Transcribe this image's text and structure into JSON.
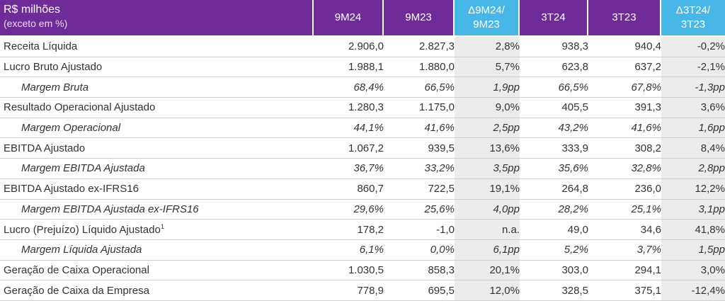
{
  "table": {
    "header": {
      "title": "R$ milhões",
      "subtitle": "(exceto em %)",
      "columns": [
        "9M24",
        "9M23",
        "Δ9M24/\n9M23",
        "3T24",
        "3T23",
        "Δ3T24/\n3T23"
      ]
    },
    "rows": [
      {
        "label": "Receita Líquida",
        "sup": "",
        "italic": false,
        "values": [
          "2.906,0",
          "2.827,3",
          "2,8%",
          "938,3",
          "940,4",
          "-0,2%"
        ]
      },
      {
        "label": "Lucro Bruto Ajustado",
        "sup": "",
        "italic": false,
        "values": [
          "1.988,1",
          "1.880,0",
          "5,7%",
          "623,8",
          "637,2",
          "-2,1%"
        ]
      },
      {
        "label": "Margem Bruta",
        "sup": "",
        "italic": true,
        "values": [
          "68,4%",
          "66,5%",
          "1,9pp",
          "66,5%",
          "67,8%",
          "-1,3pp"
        ]
      },
      {
        "label": "Resultado Operacional Ajustado",
        "sup": "",
        "italic": false,
        "values": [
          "1.280,3",
          "1.175,0",
          "9,0%",
          "405,5",
          "391,3",
          "3,6%"
        ]
      },
      {
        "label": "Margem Operacional",
        "sup": "",
        "italic": true,
        "values": [
          "44,1%",
          "41,6%",
          "2,5pp",
          "43,2%",
          "41,6%",
          "1,6pp"
        ]
      },
      {
        "label": "EBITDA Ajustado",
        "sup": "",
        "italic": false,
        "values": [
          "1.067,2",
          "939,5",
          "13,6%",
          "333,9",
          "308,2",
          "8,4%"
        ]
      },
      {
        "label": "Margem EBITDA Ajustada",
        "sup": "",
        "italic": true,
        "values": [
          "36,7%",
          "33,2%",
          "3,5pp",
          "35,6%",
          "32,8%",
          "2,8pp"
        ]
      },
      {
        "label": "EBITDA Ajustado ex-IFRS16",
        "sup": "",
        "italic": false,
        "values": [
          "860,7",
          "722,5",
          "19,1%",
          "264,8",
          "236,0",
          "12,2%"
        ]
      },
      {
        "label": "Margem EBITDA Ajustada ex-IFRS16",
        "sup": "",
        "italic": true,
        "values": [
          "29,6%",
          "25,6%",
          "4,0pp",
          "28,2%",
          "25,1%",
          "3,1pp"
        ]
      },
      {
        "label": "Lucro (Prejuízo) Líquido Ajustado",
        "sup": "1",
        "italic": false,
        "values": [
          "178,2",
          "-1,0",
          "n.a.",
          "49,0",
          "34,6",
          "41,8%"
        ]
      },
      {
        "label": "Margem Líquida Ajustada",
        "sup": "",
        "italic": true,
        "values": [
          "6,1%",
          "0,0%",
          "6,1pp",
          "5,2%",
          "3,7%",
          "1,5pp"
        ]
      },
      {
        "label": "Geração de Caixa Operacional",
        "sup": "",
        "italic": false,
        "values": [
          "1.030,5",
          "858,3",
          "20,1%",
          "303,0",
          "294,1",
          "3,0%"
        ]
      },
      {
        "label": "Geração de Caixa da Empresa",
        "sup": "",
        "italic": false,
        "values": [
          "778,9",
          "695,5",
          "12,0%",
          "328,5",
          "375,1",
          "-12,4%"
        ]
      }
    ],
    "colors": {
      "header_purple": "#6f2b97",
      "header_blue": "#46b7e6",
      "delta_bg": "#ececec"
    }
  }
}
